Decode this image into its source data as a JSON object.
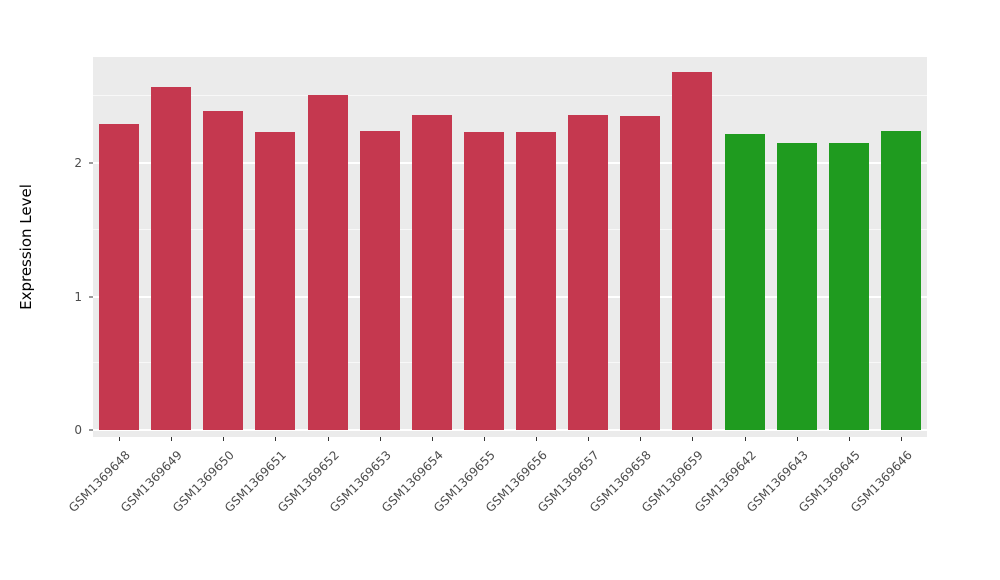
{
  "chart_data": {
    "type": "bar",
    "title": "",
    "xlabel": "",
    "ylabel": "Expression Level",
    "ylim": [
      0,
      2.8
    ],
    "yticks": [
      0,
      1,
      2
    ],
    "yticks_minor": [
      0.5,
      1.5,
      2.5
    ],
    "grid": "on",
    "legend": "none",
    "categories": [
      "GSM1369648",
      "GSM1369649",
      "GSM1369650",
      "GSM1369651",
      "GSM1369652",
      "GSM1369653",
      "GSM1369654",
      "GSM1369655",
      "GSM1369656",
      "GSM1369657",
      "GSM1369658",
      "GSM1369659",
      "GSM1369642",
      "GSM1369643",
      "GSM1369645",
      "GSM1369646"
    ],
    "values": [
      2.29,
      2.57,
      2.39,
      2.23,
      2.51,
      2.24,
      2.36,
      2.23,
      2.23,
      2.36,
      2.35,
      2.68,
      2.22,
      2.15,
      2.15,
      2.24
    ],
    "bar_colors": [
      "#C5384F",
      "#C5384F",
      "#C5384F",
      "#C5384F",
      "#C5384F",
      "#C5384F",
      "#C5384F",
      "#C5384F",
      "#C5384F",
      "#C5384F",
      "#C5384F",
      "#C5384F",
      "#1F9B1F",
      "#1F9B1F",
      "#1F9B1F",
      "#1F9B1F"
    ]
  },
  "colors": {
    "panel_background": "#EBEBEB",
    "gridline": "#FFFFFF",
    "axis_text": "#4D4D4D",
    "group_red": "#C5384F",
    "group_green": "#1F9B1F"
  }
}
